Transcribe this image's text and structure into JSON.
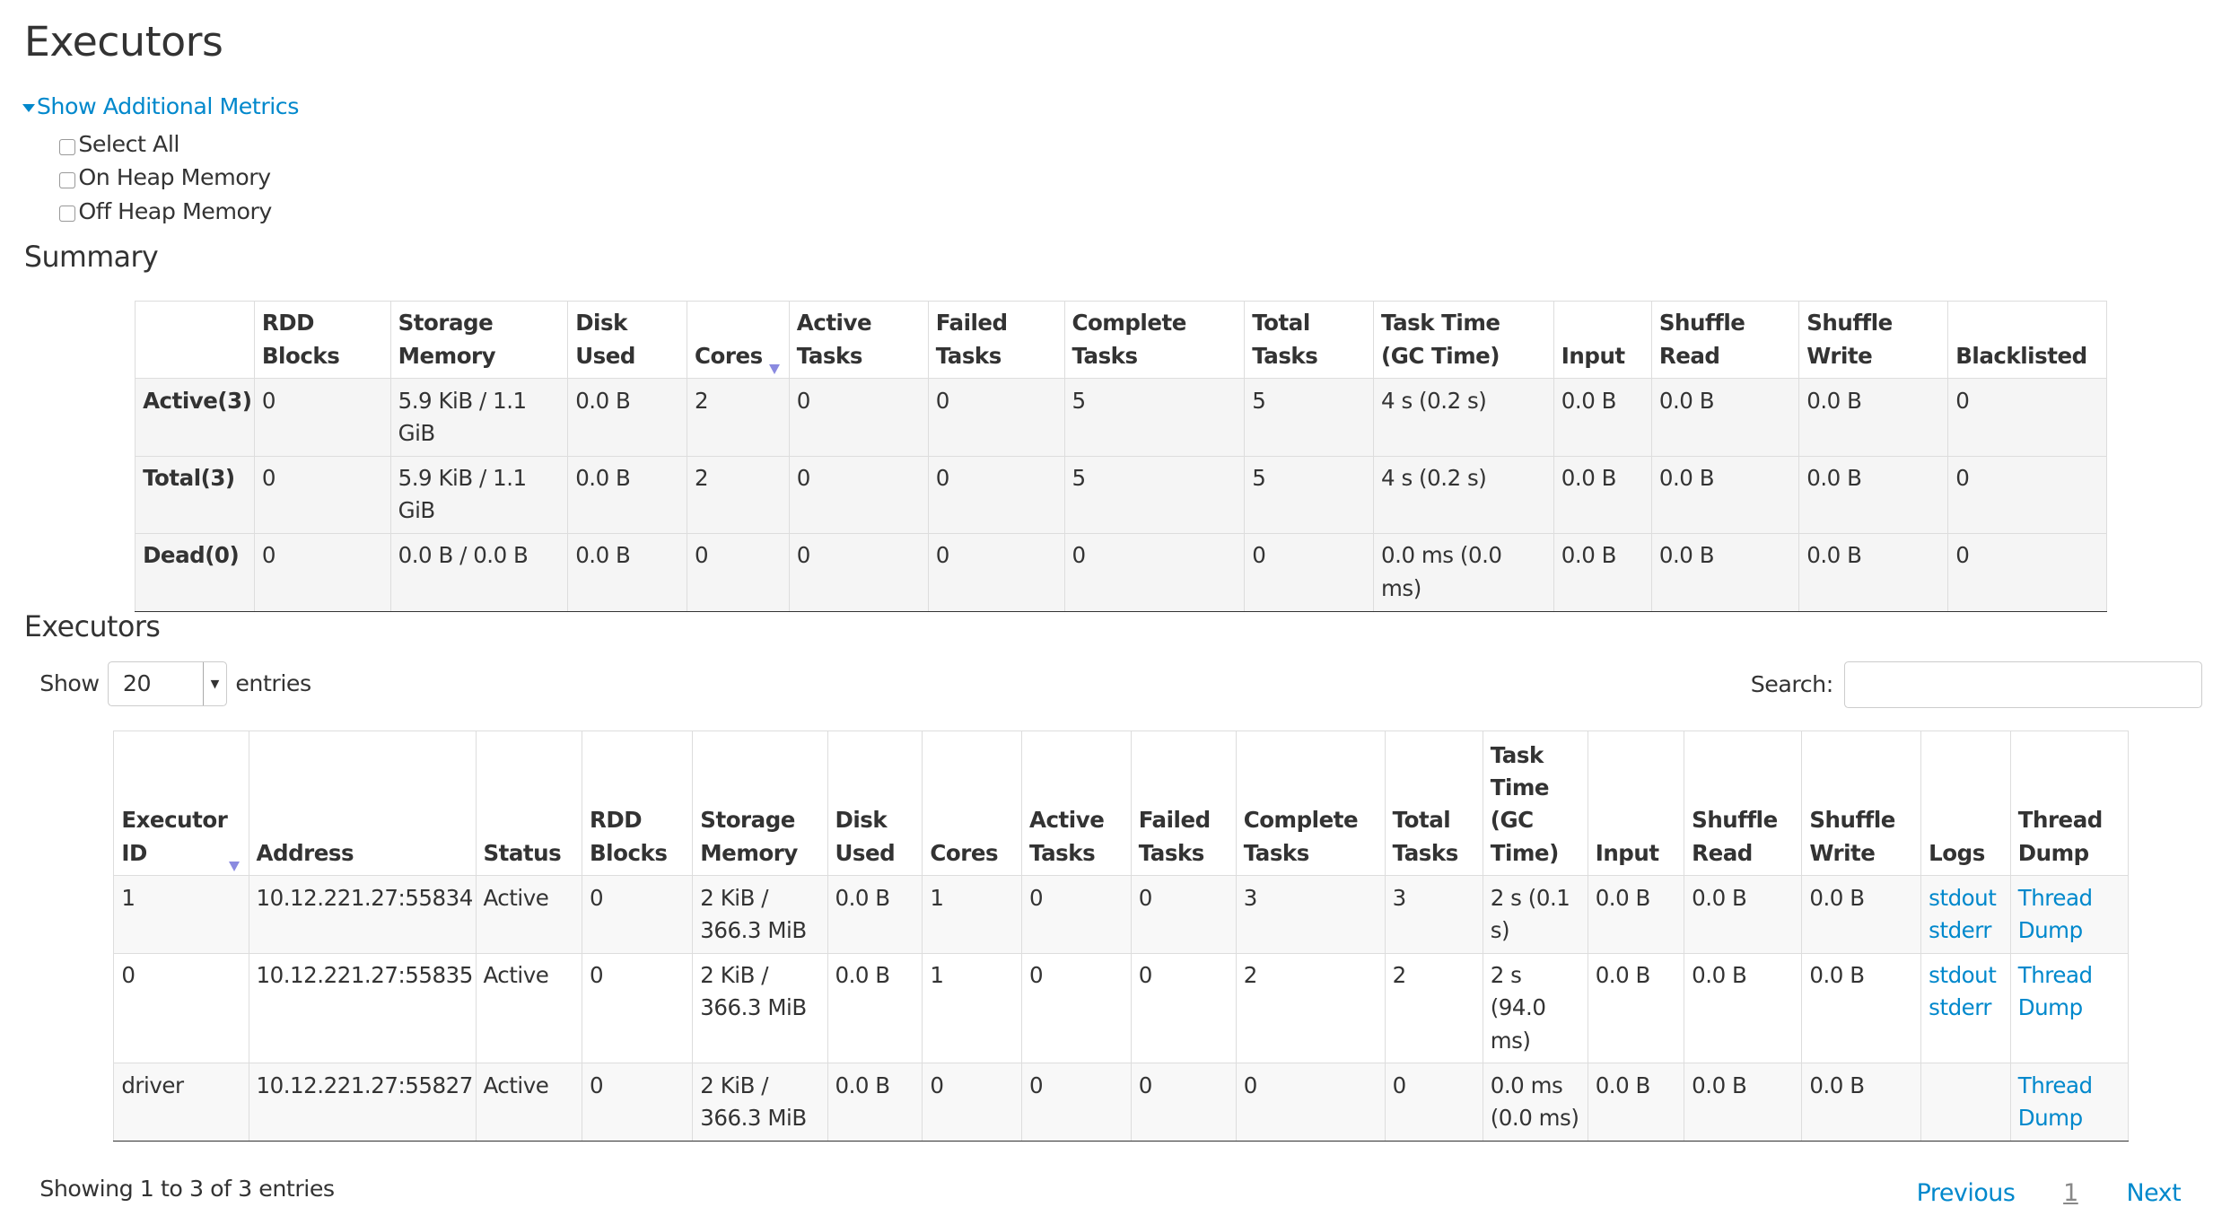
{
  "title": "Executors",
  "additional_metrics": {
    "toggle_label": "Show Additional Metrics",
    "options": [
      {
        "label": "Select All",
        "checked": false
      },
      {
        "label": "On Heap Memory",
        "checked": false
      },
      {
        "label": "Off Heap Memory",
        "checked": false
      }
    ]
  },
  "summary": {
    "heading": "Summary",
    "columns": [
      "",
      "RDD Blocks",
      "Storage Memory",
      "Disk Used",
      "Cores",
      "Active Tasks",
      "Failed Tasks",
      "Complete Tasks",
      "Total Tasks",
      "Task Time (GC Time)",
      "Input",
      "Shuffle Read",
      "Shuffle Write",
      "Blacklisted"
    ],
    "sorted_column": "Cores",
    "rows": [
      [
        "Active(3)",
        "0",
        "5.9 KiB / 1.1 GiB",
        "0.0 B",
        "2",
        "0",
        "0",
        "5",
        "5",
        "4 s (0.2 s)",
        "0.0 B",
        "0.0 B",
        "0.0 B",
        "0"
      ],
      [
        "Total(3)",
        "0",
        "5.9 KiB / 1.1 GiB",
        "0.0 B",
        "2",
        "0",
        "0",
        "5",
        "5",
        "4 s (0.2 s)",
        "0.0 B",
        "0.0 B",
        "0.0 B",
        "0"
      ],
      [
        "Dead(0)",
        "0",
        "0.0 B / 0.0 B",
        "0.0 B",
        "0",
        "0",
        "0",
        "0",
        "0",
        "0.0 ms (0.0 ms)",
        "0.0 B",
        "0.0 B",
        "0.0 B",
        "0"
      ]
    ]
  },
  "executors": {
    "heading": "Executors",
    "show_label": "Show",
    "entries_label": "entries",
    "page_size": "20",
    "search_label": "Search:",
    "search_value": "",
    "columns": [
      "Executor ID",
      "Address",
      "Status",
      "RDD Blocks",
      "Storage Memory",
      "Disk Used",
      "Cores",
      "Active Tasks",
      "Failed Tasks",
      "Complete Tasks",
      "Total Tasks",
      "Task Time (GC Time)",
      "Input",
      "Shuffle Read",
      "Shuffle Write",
      "Logs",
      "Thread Dump"
    ],
    "sorted_column": "Executor ID",
    "rows": [
      {
        "cells": [
          "1",
          "10.12.221.27:55834",
          "Active",
          "0",
          "2 KiB / 366.3 MiB",
          "0.0 B",
          "1",
          "0",
          "0",
          "3",
          "3",
          "2 s (0.1 s)",
          "0.0 B",
          "0.0 B",
          "0.0 B"
        ],
        "logs": [
          "stdout",
          "stderr"
        ],
        "thread_dump": "Thread Dump"
      },
      {
        "cells": [
          "0",
          "10.12.221.27:55835",
          "Active",
          "0",
          "2 KiB / 366.3 MiB",
          "0.0 B",
          "1",
          "0",
          "0",
          "2",
          "2",
          "2 s (94.0 ms)",
          "0.0 B",
          "0.0 B",
          "0.0 B"
        ],
        "logs": [
          "stdout",
          "stderr"
        ],
        "thread_dump": "Thread Dump"
      },
      {
        "cells": [
          "driver",
          "10.12.221.27:55827",
          "Active",
          "0",
          "2 KiB / 366.3 MiB",
          "0.0 B",
          "0",
          "0",
          "0",
          "0",
          "0",
          "0.0 ms (0.0 ms)",
          "0.0 B",
          "0.0 B",
          "0.0 B"
        ],
        "logs": [],
        "thread_dump": "Thread Dump"
      }
    ],
    "info": "Showing 1 to 3 of 3 entries",
    "pagination": {
      "previous": "Previous",
      "current": "1",
      "next": "Next"
    }
  },
  "colors": {
    "link": "#0088cc",
    "text": "#333333"
  }
}
